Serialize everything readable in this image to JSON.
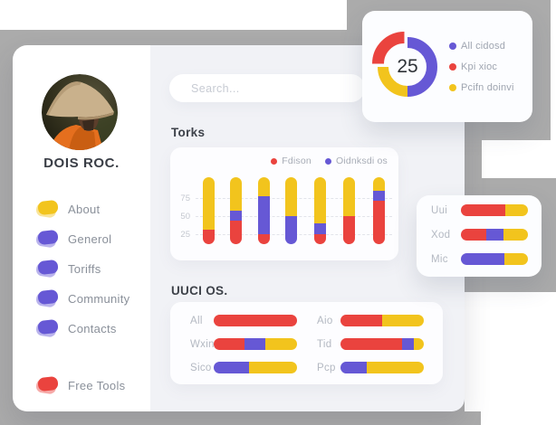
{
  "palette": {
    "red": "#EA433E",
    "purple": "#6658D5",
    "yellow": "#F2C41D"
  },
  "backdrop": {
    "gray": "#ABABAB",
    "panel": "#F1F2F6"
  },
  "sidebar": {
    "name": "DOIS ROC.",
    "menu": [
      {
        "label": "About",
        "color": "yellow"
      },
      {
        "label": "Generol",
        "color": "purple"
      },
      {
        "label": "Toriffs",
        "color": "purple"
      },
      {
        "label": "Community",
        "color": "purple"
      },
      {
        "label": "Contacts",
        "color": "purple"
      }
    ],
    "footer_item": {
      "label": "Free Tools",
      "color": "red"
    }
  },
  "search": {
    "placeholder": "Search..."
  },
  "sections": {
    "torks_title": "Torks",
    "uuci_title": "UUCI OS."
  },
  "chart_data": [
    {
      "id": "donut",
      "type": "pie",
      "style": "donut",
      "center_label": "25",
      "legend_position": "right",
      "slices": [
        {
          "name": "All cidosd",
          "color": "purple",
          "value": 50,
          "start_deg": 0,
          "end_deg": 180,
          "exploded": false
        },
        {
          "name": "Kpi xioc",
          "color": "red",
          "value": 25,
          "start_deg": 270,
          "end_deg": 360,
          "exploded": true
        },
        {
          "name": "Pcifn doinvi",
          "color": "yellow",
          "value": 25,
          "start_deg": 180,
          "end_deg": 270,
          "exploded": false
        }
      ]
    },
    {
      "id": "torks",
      "type": "bar",
      "stacked": true,
      "orientation": "vertical",
      "grid": "dashed",
      "legend": [
        {
          "label": "Fdison",
          "color": "red"
        },
        {
          "label": "Oidnksdi os",
          "color": "purple"
        }
      ],
      "yticks": [
        "75",
        "50",
        "25"
      ],
      "note": "rounded pill bars spanning approx values 10 to 104 on the axis; segments listed bottom-up in axis units",
      "bars": [
        [
          {
            "c": "red",
            "v": 20
          },
          {
            "c": "yellow",
            "v": 74
          }
        ],
        [
          {
            "c": "red",
            "v": 33
          },
          {
            "c": "purple",
            "v": 14
          },
          {
            "c": "yellow",
            "v": 47
          }
        ],
        [
          {
            "c": "red",
            "v": 14
          },
          {
            "c": "purple",
            "v": 53
          },
          {
            "c": "yellow",
            "v": 27
          }
        ],
        [
          {
            "c": "purple",
            "v": 39
          },
          {
            "c": "yellow",
            "v": 55
          }
        ],
        [
          {
            "c": "red",
            "v": 14
          },
          {
            "c": "purple",
            "v": 15
          },
          {
            "c": "yellow",
            "v": 65
          }
        ],
        [
          {
            "c": "red",
            "v": 39
          },
          {
            "c": "yellow",
            "v": 55
          }
        ],
        [
          {
            "c": "red",
            "v": 61
          },
          {
            "c": "purple",
            "v": 14
          },
          {
            "c": "yellow",
            "v": 19
          }
        ]
      ]
    },
    {
      "id": "uuci",
      "type": "bar",
      "stacked": true,
      "orientation": "horizontal",
      "layout": "two-columns",
      "rows": [
        {
          "label": "All",
          "segments": [
            {
              "c": "red",
              "v": 100
            }
          ]
        },
        {
          "label": "Wxin",
          "segments": [
            {
              "c": "red",
              "v": 37
            },
            {
              "c": "purple",
              "v": 25
            },
            {
              "c": "yellow",
              "v": 38
            }
          ]
        },
        {
          "label": "Sico",
          "segments": [
            {
              "c": "purple",
              "v": 42
            },
            {
              "c": "yellow",
              "v": 58
            }
          ]
        },
        {
          "label": "Aio",
          "segments": [
            {
              "c": "red",
              "v": 50
            },
            {
              "c": "yellow",
              "v": 50
            }
          ]
        },
        {
          "label": "Tid",
          "segments": [
            {
              "c": "red",
              "v": 74
            },
            {
              "c": "purple",
              "v": 14
            },
            {
              "c": "yellow",
              "v": 12
            }
          ]
        },
        {
          "label": "Pcp",
          "segments": [
            {
              "c": "purple",
              "v": 31
            },
            {
              "c": "yellow",
              "v": 69
            }
          ]
        }
      ]
    },
    {
      "id": "mini",
      "type": "bar",
      "stacked": true,
      "orientation": "horizontal",
      "rows": [
        {
          "label": "Uui",
          "segments": [
            {
              "c": "red",
              "v": 66
            },
            {
              "c": "yellow",
              "v": 34
            }
          ]
        },
        {
          "label": "Xod",
          "segments": [
            {
              "c": "red",
              "v": 38
            },
            {
              "c": "purple",
              "v": 26
            },
            {
              "c": "yellow",
              "v": 36
            }
          ]
        },
        {
          "label": "Mic",
          "segments": [
            {
              "c": "purple",
              "v": 65
            },
            {
              "c": "yellow",
              "v": 35
            }
          ]
        }
      ]
    }
  ]
}
